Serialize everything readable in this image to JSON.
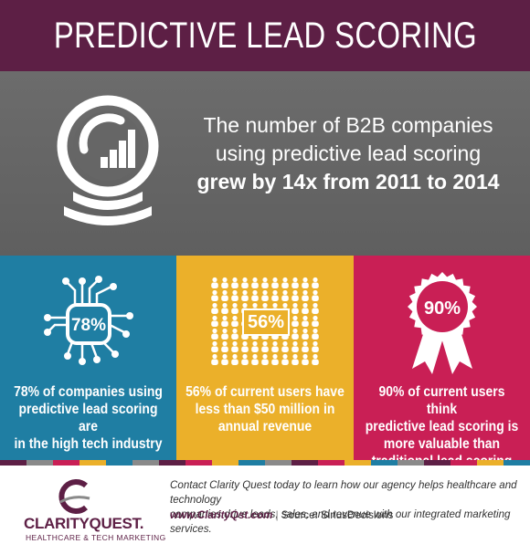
{
  "header": {
    "title": "PREDICTIVE LEAD SCORING"
  },
  "hero": {
    "line1": "The number of B2B companies",
    "line2": "using predictive lead scoring",
    "line3": "grew by 14x from 2011 to 2014"
  },
  "panels": [
    {
      "badge": "78%",
      "caption_lines": [
        "78% of companies using",
        "predictive lead scoring are",
        "in the high tech industry"
      ],
      "color": "#1f7ea3"
    },
    {
      "badge": "56%",
      "caption_lines": [
        "56% of current users have",
        "less than $50 million in",
        "annual revenue"
      ],
      "color": "#ebb02a"
    },
    {
      "badge": "90%",
      "caption_lines": [
        "90% of current users think",
        "predictive lead scoring is",
        "more valuable than",
        "traditional lead scoring"
      ],
      "color": "#c91f55"
    }
  ],
  "footer": {
    "logo_name": "CLARITYQUEST.",
    "logo_sub": "HEALTHCARE & TECH MARKETING",
    "blurb_line1": "Contact Clarity Quest today to learn how our agency helps healthcare and technology",
    "blurb_line2": "companies drive leads, sales, and revenue with our integrated marketing services.",
    "url": "www.ClarityQst.com",
    "separator": "|",
    "source": "Source: SiriusDecisions"
  },
  "colors": {
    "header": "#5d1f45",
    "hero": "#666666",
    "blue": "#1f7ea3",
    "gold": "#ebb02a",
    "magenta": "#c91f55",
    "stripe": [
      "#5d1f45",
      "#8a8a8a",
      "#c91f55",
      "#ebb02a",
      "#1f7ea3",
      "#8a8a8a",
      "#5d1f45",
      "#c91f55",
      "#ebb02a",
      "#1f7ea3",
      "#8a8a8a",
      "#5d1f45",
      "#c91f55",
      "#ebb02a",
      "#1f7ea3",
      "#8a8a8a",
      "#5d1f45",
      "#c91f55",
      "#ebb02a",
      "#1f7ea3"
    ]
  },
  "icons": {
    "hero": "crystal-ball-chart-icon",
    "panel1": "circuit-chip-icon",
    "panel2": "people-grid-icon",
    "panel3": "award-ribbon-icon",
    "logo": "clarity-quest-swoosh-icon"
  }
}
